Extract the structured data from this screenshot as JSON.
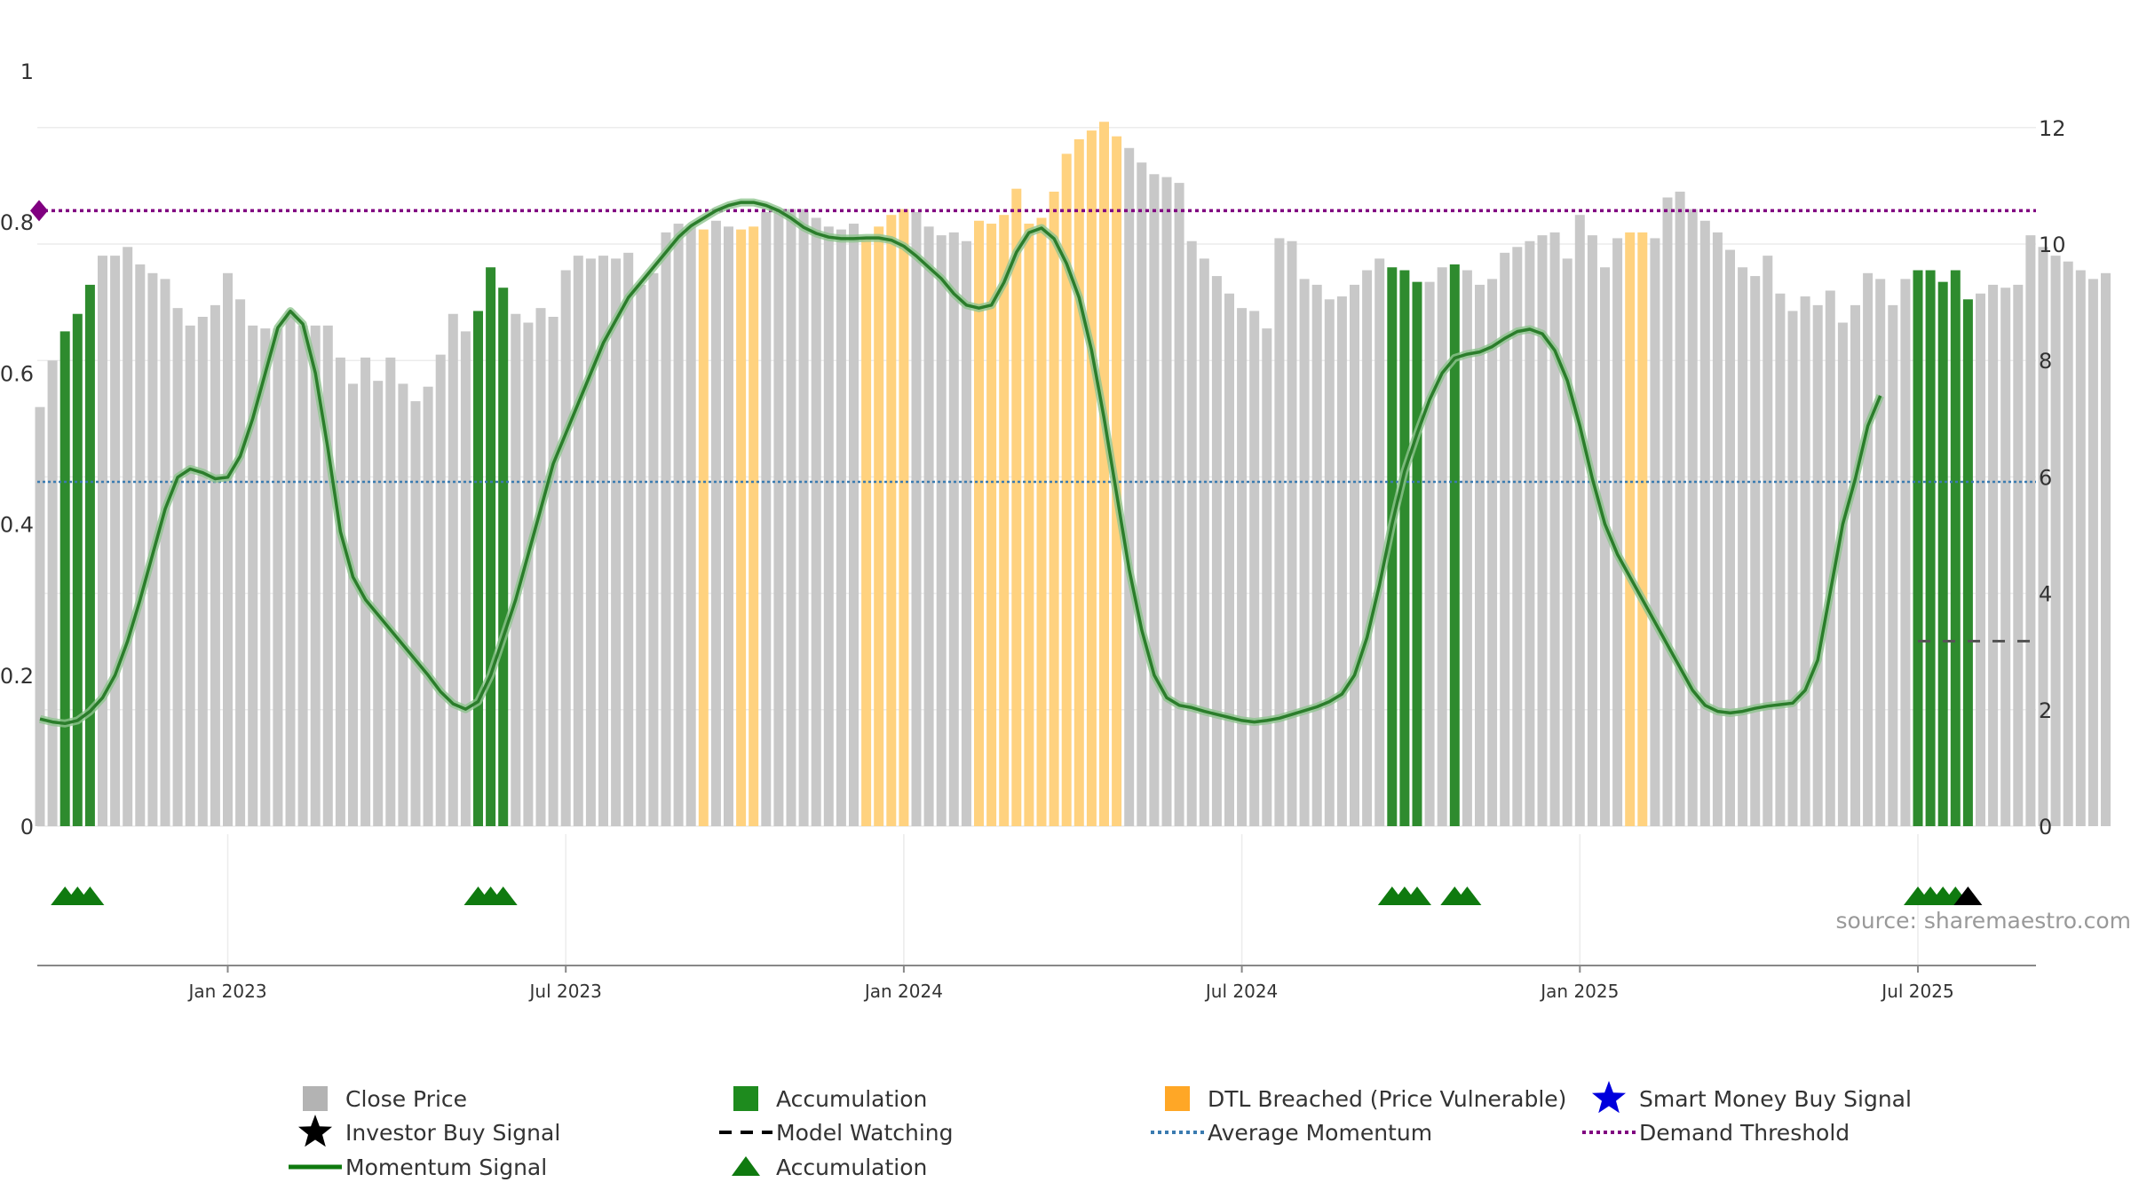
{
  "chart_data": {
    "type": "bar",
    "y_left": {
      "ticks": [
        0,
        0.2,
        0.4,
        0.6,
        0.8,
        1
      ],
      "tick_labels": [
        "0",
        "0.2",
        "0.4",
        "0.6",
        "0.8",
        "1"
      ],
      "ylim": [
        0,
        1
      ]
    },
    "y_right": {
      "ticks": [
        0,
        2,
        4,
        6,
        8,
        10,
        12
      ],
      "tick_labels": [
        "0",
        "2",
        "4",
        "6",
        "8",
        "10",
        "12"
      ],
      "ylim": [
        0,
        13
      ]
    },
    "x_ticks": [
      {
        "label": "Jan 2023",
        "bar_index": 15
      },
      {
        "label": "Jul 2023",
        "bar_index": 42
      },
      {
        "label": "Jan 2024",
        "bar_index": 69
      },
      {
        "label": "Jul 2024",
        "bar_index": 96
      },
      {
        "label": "Jan 2025",
        "bar_index": 123
      },
      {
        "label": "Jul 2025",
        "bar_index": 150
      }
    ],
    "close_price": [
      7.2,
      8.0,
      8.5,
      8.8,
      9.3,
      9.8,
      9.8,
      9.95,
      9.65,
      9.5,
      9.4,
      8.9,
      8.6,
      8.75,
      8.95,
      9.5,
      9.05,
      8.6,
      8.55,
      8.55,
      8.85,
      8.6,
      8.6,
      8.6,
      8.05,
      7.6,
      8.05,
      7.65,
      8.05,
      7.6,
      7.3,
      7.55,
      8.1,
      8.8,
      8.5,
      8.85,
      9.6,
      9.25,
      8.8,
      8.65,
      8.9,
      8.75,
      9.55,
      9.8,
      9.75,
      9.8,
      9.75,
      9.85,
      9.3,
      9.5,
      10.2,
      10.35,
      10.3,
      10.25,
      10.4,
      10.3,
      10.25,
      10.3,
      10.55,
      10.6,
      10.6,
      10.6,
      10.45,
      10.3,
      10.25,
      10.35,
      10.1,
      10.3,
      10.5,
      10.6,
      10.55,
      10.3,
      10.15,
      10.2,
      10.05,
      10.4,
      10.35,
      10.5,
      10.95,
      10.35,
      10.45,
      10.9,
      11.55,
      11.8,
      11.95,
      12.1,
      11.85,
      11.65,
      11.4,
      11.2,
      11.15,
      11.05,
      10.05,
      9.75,
      9.45,
      9.15,
      8.9,
      8.85,
      8.55,
      10.1,
      10.05,
      9.4,
      9.3,
      9.05,
      9.1,
      9.3,
      9.55,
      9.75,
      9.6,
      9.55,
      9.35,
      9.35,
      9.6,
      9.65,
      9.55,
      9.3,
      9.4,
      9.85,
      9.95,
      10.05,
      10.15,
      10.2,
      9.75,
      10.5,
      10.15,
      9.6,
      10.1,
      10.2,
      10.2,
      10.1,
      10.8,
      10.9,
      10.6,
      10.4,
      10.2,
      9.9,
      9.6,
      9.45,
      9.8,
      9.15,
      8.85,
      9.1,
      8.95,
      9.2,
      8.65,
      8.95,
      9.5,
      9.4,
      8.95,
      9.4,
      9.55,
      9.55,
      9.35,
      9.55,
      9.05,
      9.15,
      9.3,
      9.25,
      9.3,
      10.15,
      9.95,
      9.8,
      9.7,
      9.55,
      9.4,
      9.5
    ],
    "accumulation_bars": [
      2,
      3,
      4,
      35,
      36,
      37,
      108,
      109,
      110,
      113,
      150,
      151,
      152,
      153,
      154
    ],
    "dtl_breached_bars": [
      53,
      56,
      57,
      66,
      67,
      68,
      69,
      75,
      76,
      77,
      78,
      79,
      80,
      81,
      82,
      83,
      84,
      85,
      86,
      127,
      128
    ],
    "momentum": [
      0.142,
      0.138,
      0.136,
      0.14,
      0.152,
      0.17,
      0.2,
      0.245,
      0.3,
      0.36,
      0.42,
      0.462,
      0.473,
      0.468,
      0.46,
      0.462,
      0.49,
      0.54,
      0.6,
      0.66,
      0.682,
      0.665,
      0.6,
      0.5,
      0.39,
      0.33,
      0.3,
      0.28,
      0.26,
      0.24,
      0.22,
      0.2,
      0.178,
      0.162,
      0.155,
      0.165,
      0.2,
      0.25,
      0.3,
      0.36,
      0.42,
      0.48,
      0.52,
      0.56,
      0.6,
      0.64,
      0.67,
      0.7,
      0.72,
      0.74,
      0.76,
      0.78,
      0.795,
      0.805,
      0.815,
      0.822,
      0.826,
      0.826,
      0.822,
      0.815,
      0.805,
      0.793,
      0.785,
      0.78,
      0.778,
      0.778,
      0.779,
      0.779,
      0.776,
      0.768,
      0.755,
      0.74,
      0.725,
      0.705,
      0.69,
      0.686,
      0.69,
      0.72,
      0.76,
      0.786,
      0.792,
      0.778,
      0.745,
      0.7,
      0.63,
      0.54,
      0.44,
      0.34,
      0.26,
      0.2,
      0.17,
      0.16,
      0.157,
      0.152,
      0.148,
      0.144,
      0.14,
      0.138,
      0.14,
      0.143,
      0.148,
      0.153,
      0.158,
      0.165,
      0.175,
      0.2,
      0.25,
      0.32,
      0.4,
      0.47,
      0.52,
      0.565,
      0.6,
      0.62,
      0.625,
      0.628,
      0.635,
      0.646,
      0.655,
      0.658,
      0.652,
      0.63,
      0.59,
      0.53,
      0.46,
      0.4,
      0.36,
      0.33,
      0.3,
      0.27,
      0.24,
      0.21,
      0.18,
      0.16,
      0.152,
      0.15,
      0.152,
      0.156,
      0.159,
      0.161,
      0.163,
      0.18,
      0.22,
      0.31,
      0.4,
      0.46,
      0.53,
      0.57
    ],
    "average_momentum": 0.456,
    "demand_threshold": 0.815,
    "model_watching_level": 0.245,
    "model_watching_start_bar": 150,
    "accumulation_triangles": [
      2,
      3,
      4,
      35,
      36,
      37,
      108,
      109,
      110,
      113,
      114,
      150,
      151,
      152,
      153
    ],
    "investor_buy_signal_bars": [
      154
    ],
    "smart_money_buy_signal_bars": [],
    "legend": [
      {
        "label": "Close Price",
        "marker": "gray-square",
        "color": "#b3b3b3"
      },
      {
        "label": "Accumulation",
        "marker": "green-square",
        "color": "#1e8b1e"
      },
      {
        "label": "DTL Breached (Price Vulnerable)",
        "marker": "orange-square",
        "color": "#ffa726"
      },
      {
        "label": "Smart Money Buy Signal",
        "marker": "blue-star-icon",
        "color": "#0000dd"
      },
      {
        "label": "Investor Buy Signal",
        "marker": "black-star-icon",
        "color": "#000000"
      },
      {
        "label": "Model Watching",
        "marker": "black-dash",
        "color": "#000000"
      },
      {
        "label": "Average Momentum",
        "marker": "blue-dotted",
        "color": "#3b7bb0"
      },
      {
        "label": "Demand Threshold",
        "marker": "purple-dotted",
        "color": "#800080"
      },
      {
        "label": "Momentum Signal",
        "marker": "green-line",
        "color": "#0f7a0f"
      },
      {
        "label": "Accumulation",
        "marker": "green-triangle-icon",
        "color": "#0f7a0f"
      }
    ],
    "source": "source: sharemaestro.com"
  }
}
